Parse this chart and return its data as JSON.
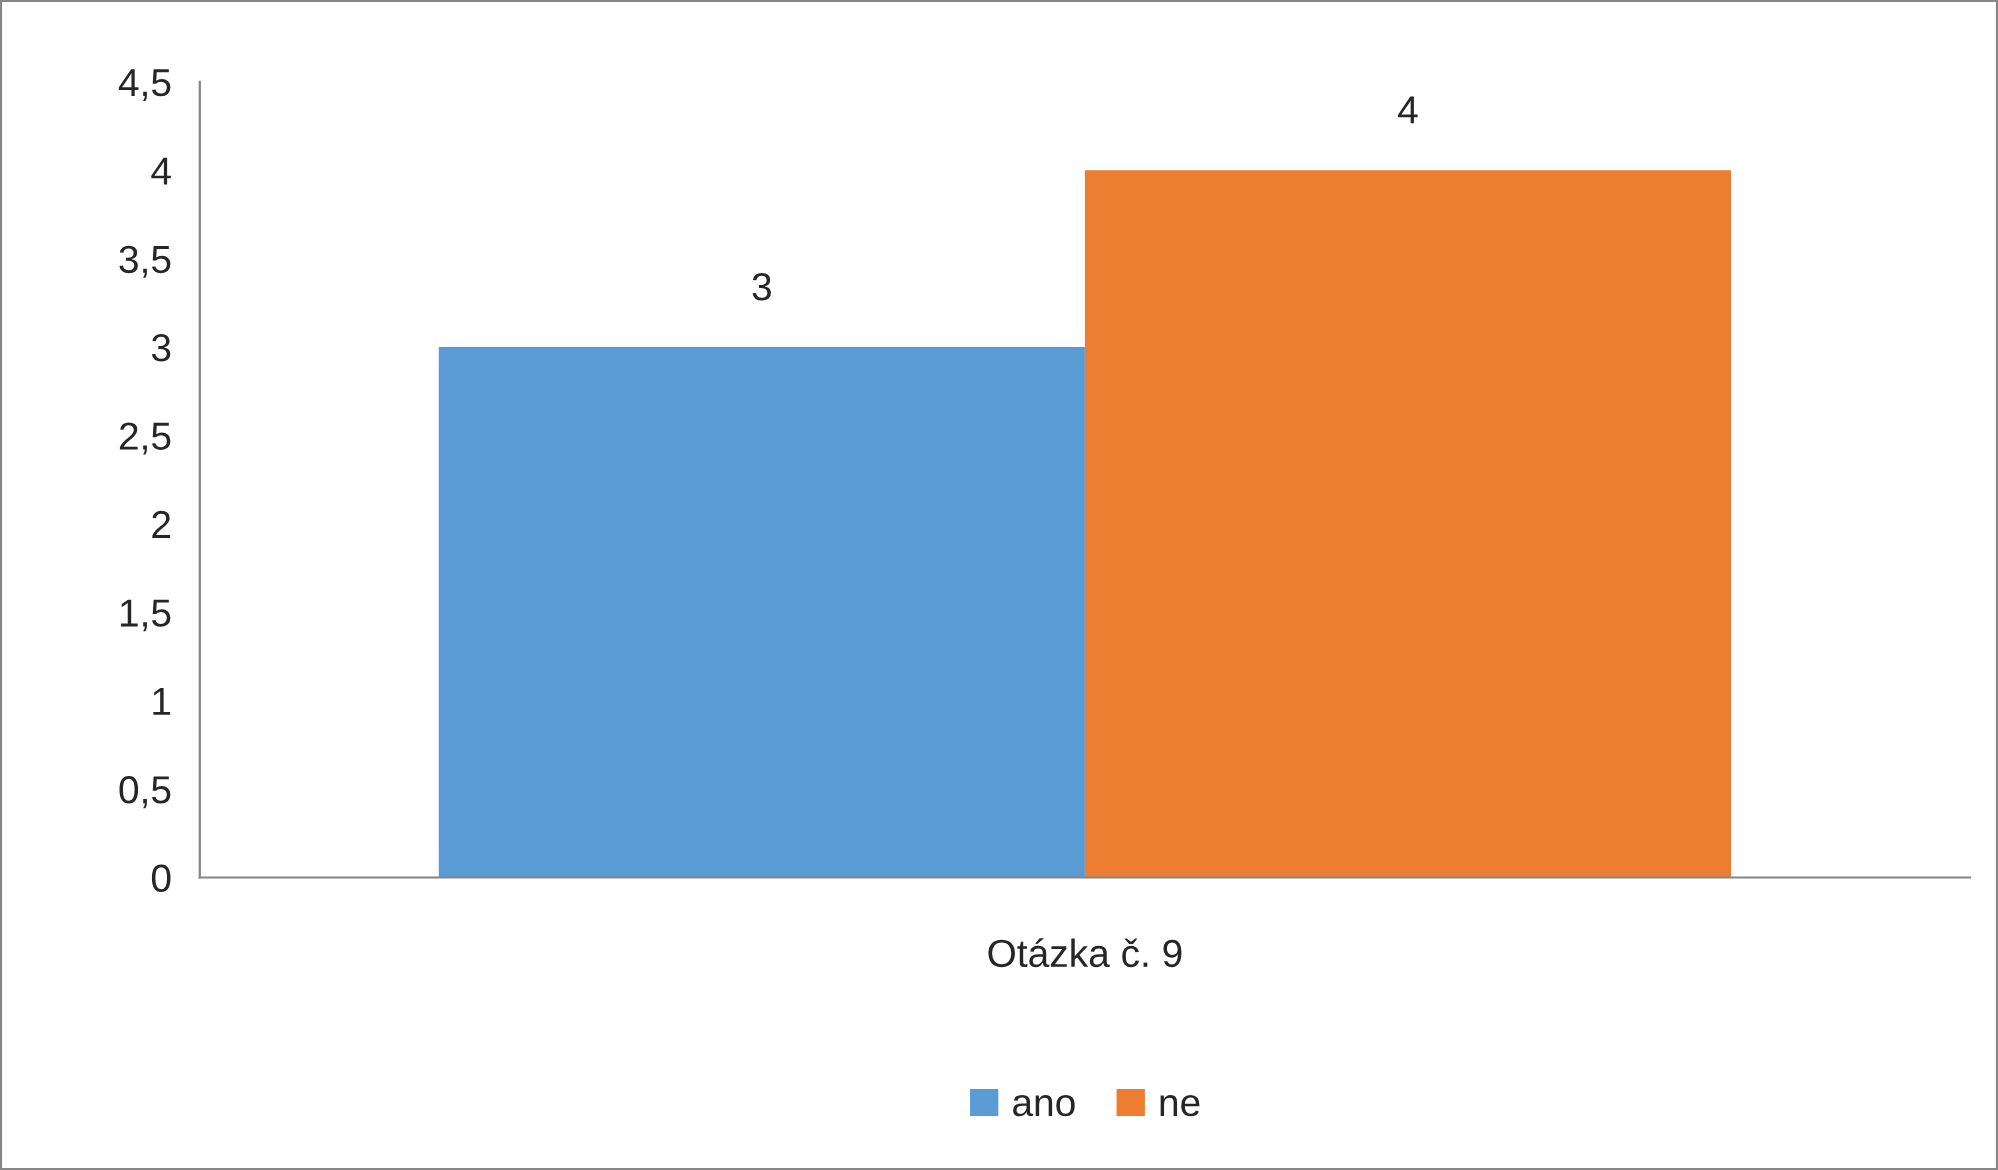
{
  "chart_data": {
    "type": "bar",
    "categories": [
      "Otázka č. 9"
    ],
    "series": [
      {
        "name": "ano",
        "color": "#5b9bd5",
        "values": [
          3
        ]
      },
      {
        "name": "ne",
        "color": "#ed7d31",
        "values": [
          4
        ]
      }
    ],
    "ylim": [
      0,
      4.5
    ],
    "yticks": [
      0,
      {
        "value": 0.5,
        "label": "0,5"
      },
      1,
      {
        "value": 1.5,
        "label": "1,5"
      },
      2,
      {
        "value": 2.5,
        "label": "2,5"
      },
      3,
      {
        "value": 3.5,
        "label": "3,5"
      },
      4,
      {
        "value": 4.5,
        "label": "4,5"
      }
    ],
    "data_labels": true,
    "grid": false,
    "legend": "bottom"
  }
}
